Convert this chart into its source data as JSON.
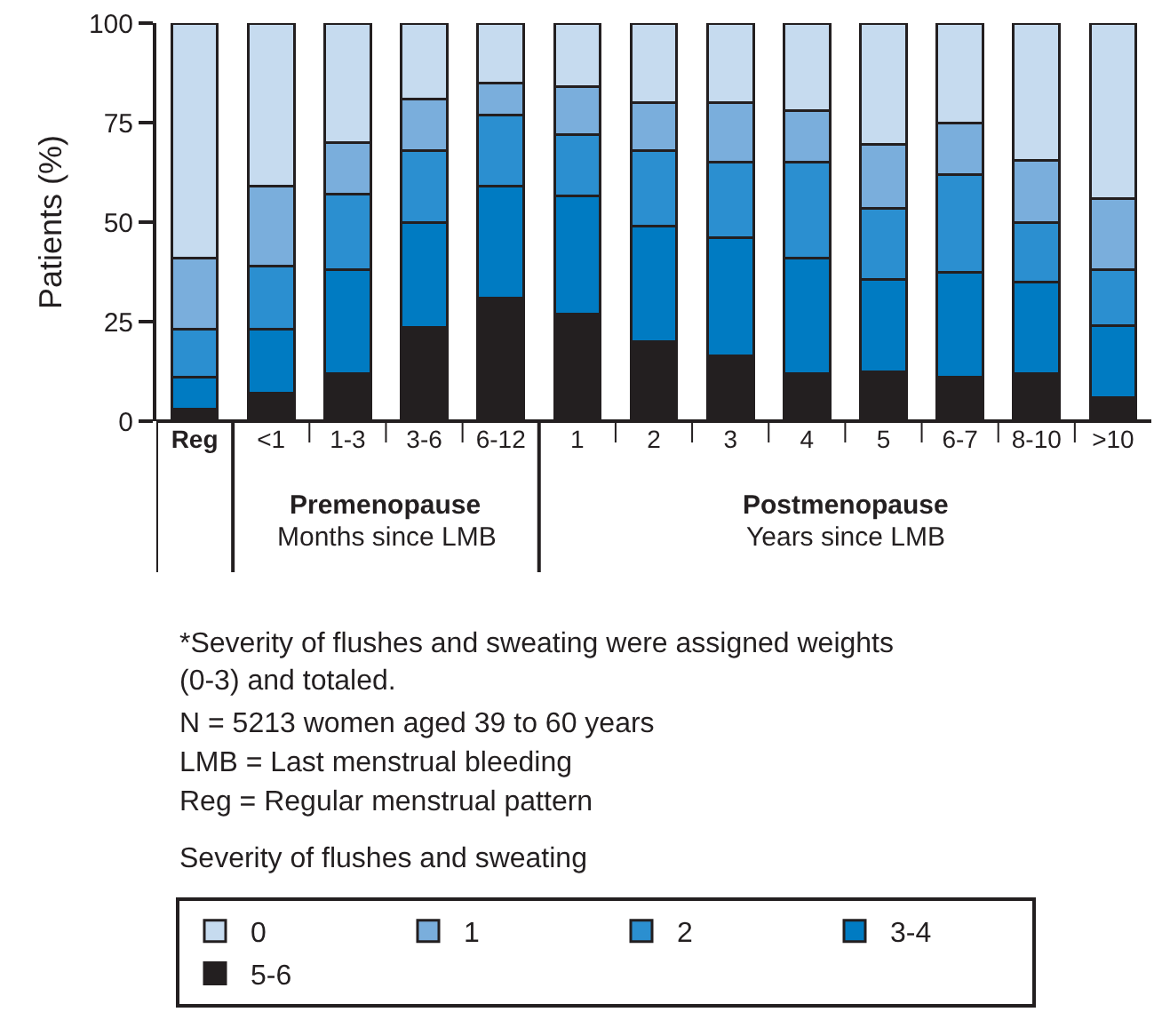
{
  "chart_data": {
    "type": "bar",
    "stacked": true,
    "ylabel": "Patients (%)",
    "legend_title": "Severity of flushes and sweating",
    "categories": [
      "Reg",
      "<1",
      "1-3",
      "3-6",
      "6-12",
      "1",
      "2",
      "3",
      "4",
      "5",
      "6-7",
      "8-10",
      ">10"
    ],
    "series": [
      {
        "name": "5-6",
        "color": "#231f20",
        "values": [
          3,
          7,
          12,
          23.5,
          31,
          27,
          20,
          16.5,
          12,
          12.5,
          11,
          12,
          6
        ]
      },
      {
        "name": "3-4",
        "color": "#007bc2",
        "values": [
          8,
          16,
          26,
          26.5,
          28,
          29.5,
          29,
          29.5,
          29,
          23,
          26.5,
          23,
          18
        ]
      },
      {
        "name": "2",
        "color": "#2b8fd0",
        "values": [
          12,
          16,
          19,
          18,
          18,
          15.5,
          19,
          19,
          24,
          18,
          24.5,
          15,
          14
        ]
      },
      {
        "name": "1",
        "color": "#7aaedc",
        "values": [
          18,
          20,
          13,
          13,
          8,
          12,
          12,
          15,
          13,
          16,
          13,
          15.5,
          18
        ]
      },
      {
        "name": "0",
        "color": "#c6dbef",
        "values": [
          59,
          41,
          30,
          19,
          15,
          16,
          20,
          20,
          22,
          30.5,
          25,
          34.5,
          44
        ]
      }
    ],
    "ylim": [
      0,
      100
    ],
    "yticks": [
      0,
      25,
      50,
      75,
      100
    ],
    "legend": "bottom left",
    "annotations": [
      "Premenopause",
      "Months since LMB",
      "Postmenopause",
      "Years since LMB",
      "*Severity of flushes and sweating were assigned weights (0-3) and totaled.",
      "N = 5213 women aged 39 to 60 years",
      "LMB = Last menstrual bleeding",
      "Reg = Regular menstrual pattern"
    ]
  }
}
